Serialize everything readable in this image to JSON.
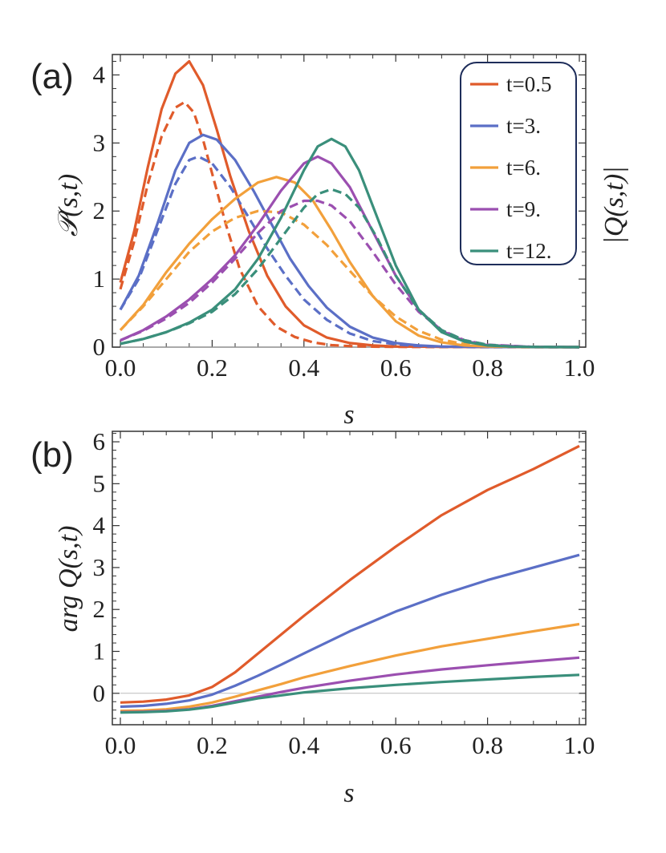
{
  "colors": {
    "t0_5": "#e05b2b",
    "t3": "#5b6fc6",
    "t6": "#f2a03b",
    "t9": "#9b4fb0",
    "t12": "#3a8f7b"
  },
  "chart_data": [
    {
      "panel": "(a)",
      "type": "line",
      "xlabel": "s",
      "ylabel_left": "𝒫(s,t)",
      "ylabel_right": "|Q(s,t)|",
      "xlim": [
        0.0,
        1.0
      ],
      "ylim": [
        0,
        4.3
      ],
      "xticks": [
        "0.0",
        "0.2",
        "0.4",
        "0.6",
        "0.8",
        "1.0"
      ],
      "yticks": [
        "0",
        "1",
        "2",
        "3",
        "4"
      ],
      "legend_position": "top-right",
      "legend": [
        "t=0.5",
        "t=3.",
        "t=6.",
        "t=9.",
        "t=12."
      ],
      "series": [
        {
          "name": "t=0.5",
          "style": "solid",
          "color_key": "t0_5",
          "x": [
            0,
            0.03,
            0.06,
            0.09,
            0.12,
            0.15,
            0.18,
            0.21,
            0.24,
            0.28,
            0.32,
            0.36,
            0.4,
            0.45,
            0.5,
            0.55,
            0.6,
            0.7,
            0.8,
            1.0
          ],
          "y": [
            0.95,
            1.7,
            2.65,
            3.5,
            4.02,
            4.2,
            3.85,
            3.2,
            2.5,
            1.7,
            1.05,
            0.6,
            0.32,
            0.14,
            0.06,
            0.025,
            0.01,
            0.003,
            0.001,
            0
          ]
        },
        {
          "name": "t=0.5 (dashed)",
          "style": "dashed",
          "color_key": "t0_5",
          "x": [
            0,
            0.03,
            0.06,
            0.09,
            0.12,
            0.14,
            0.16,
            0.18,
            0.2,
            0.23,
            0.26,
            0.3,
            0.34,
            0.38,
            0.42,
            0.46,
            0.5,
            0.55,
            0.6,
            0.7,
            0.8,
            1.0
          ],
          "y": [
            0.85,
            1.55,
            2.4,
            3.1,
            3.52,
            3.6,
            3.45,
            3.05,
            2.55,
            1.8,
            1.15,
            0.6,
            0.3,
            0.15,
            0.07,
            0.03,
            0.015,
            0.007,
            0.003,
            0.001,
            0,
            0
          ]
        },
        {
          "name": "t=3.",
          "style": "solid",
          "color_key": "t3",
          "x": [
            0,
            0.04,
            0.08,
            0.12,
            0.15,
            0.18,
            0.21,
            0.25,
            0.29,
            0.33,
            0.37,
            0.41,
            0.45,
            0.5,
            0.55,
            0.6,
            0.65,
            0.7,
            0.8,
            1.0
          ],
          "y": [
            0.55,
            1.05,
            1.8,
            2.6,
            3.0,
            3.12,
            3.05,
            2.75,
            2.3,
            1.8,
            1.3,
            0.9,
            0.58,
            0.3,
            0.14,
            0.06,
            0.025,
            0.01,
            0.002,
            0
          ]
        },
        {
          "name": "t=3. (dashed)",
          "style": "dashed",
          "color_key": "t3",
          "x": [
            0,
            0.04,
            0.08,
            0.12,
            0.15,
            0.17,
            0.2,
            0.24,
            0.28,
            0.32,
            0.36,
            0.4,
            0.45,
            0.5,
            0.55,
            0.6,
            0.65,
            0.7,
            0.8,
            1.0
          ],
          "y": [
            0.55,
            1.0,
            1.7,
            2.4,
            2.75,
            2.8,
            2.7,
            2.35,
            1.9,
            1.45,
            1.05,
            0.7,
            0.4,
            0.2,
            0.09,
            0.04,
            0.015,
            0.006,
            0.001,
            0
          ]
        },
        {
          "name": "t=6.",
          "style": "solid",
          "color_key": "t6",
          "x": [
            0,
            0.05,
            0.1,
            0.15,
            0.2,
            0.25,
            0.3,
            0.34,
            0.38,
            0.42,
            0.46,
            0.5,
            0.55,
            0.6,
            0.65,
            0.7,
            0.75,
            0.8,
            0.9,
            1.0
          ],
          "y": [
            0.25,
            0.62,
            1.1,
            1.52,
            1.88,
            2.18,
            2.42,
            2.5,
            2.42,
            2.15,
            1.72,
            1.25,
            0.75,
            0.38,
            0.17,
            0.07,
            0.025,
            0.01,
            0.001,
            0
          ]
        },
        {
          "name": "t=6. (dashed)",
          "style": "dashed",
          "color_key": "t6",
          "x": [
            0,
            0.05,
            0.1,
            0.15,
            0.2,
            0.25,
            0.3,
            0.35,
            0.4,
            0.45,
            0.5,
            0.55,
            0.6,
            0.65,
            0.7,
            0.75,
            0.8,
            0.9,
            1.0
          ],
          "y": [
            0.25,
            0.6,
            1.0,
            1.4,
            1.7,
            1.9,
            2.0,
            1.98,
            1.8,
            1.5,
            1.12,
            0.75,
            0.45,
            0.24,
            0.11,
            0.045,
            0.015,
            0.002,
            0
          ]
        },
        {
          "name": "t=9.",
          "style": "solid",
          "color_key": "t9",
          "x": [
            0,
            0.05,
            0.1,
            0.15,
            0.2,
            0.25,
            0.3,
            0.35,
            0.4,
            0.43,
            0.46,
            0.5,
            0.55,
            0.6,
            0.65,
            0.7,
            0.75,
            0.8,
            0.9,
            1.0
          ],
          "y": [
            0.1,
            0.25,
            0.45,
            0.7,
            1.0,
            1.35,
            1.8,
            2.3,
            2.7,
            2.8,
            2.7,
            2.35,
            1.7,
            1.05,
            0.55,
            0.24,
            0.09,
            0.03,
            0.003,
            0
          ]
        },
        {
          "name": "t=9. (dashed)",
          "style": "dashed",
          "color_key": "t9",
          "x": [
            0,
            0.05,
            0.1,
            0.15,
            0.2,
            0.25,
            0.3,
            0.35,
            0.4,
            0.43,
            0.46,
            0.5,
            0.55,
            0.6,
            0.65,
            0.7,
            0.75,
            0.8,
            0.9,
            1.0
          ],
          "y": [
            0.1,
            0.24,
            0.42,
            0.65,
            0.95,
            1.3,
            1.68,
            2.0,
            2.15,
            2.15,
            2.08,
            1.85,
            1.4,
            0.92,
            0.52,
            0.25,
            0.1,
            0.035,
            0.003,
            0
          ]
        },
        {
          "name": "t=12.",
          "style": "solid",
          "color_key": "t12",
          "x": [
            0,
            0.05,
            0.1,
            0.15,
            0.2,
            0.25,
            0.3,
            0.35,
            0.4,
            0.43,
            0.46,
            0.49,
            0.52,
            0.56,
            0.6,
            0.65,
            0.7,
            0.75,
            0.8,
            0.85,
            0.9,
            1.0
          ],
          "y": [
            0.05,
            0.12,
            0.22,
            0.36,
            0.55,
            0.85,
            1.3,
            1.9,
            2.6,
            2.95,
            3.06,
            2.95,
            2.6,
            1.9,
            1.2,
            0.55,
            0.22,
            0.08,
            0.025,
            0.008,
            0.002,
            0
          ]
        },
        {
          "name": "t=12. (dashed)",
          "style": "dashed",
          "color_key": "t12",
          "x": [
            0,
            0.05,
            0.1,
            0.15,
            0.2,
            0.25,
            0.3,
            0.35,
            0.4,
            0.43,
            0.46,
            0.49,
            0.52,
            0.56,
            0.6,
            0.65,
            0.7,
            0.75,
            0.8,
            0.85,
            0.9,
            1.0
          ],
          "y": [
            0.05,
            0.12,
            0.22,
            0.35,
            0.52,
            0.78,
            1.15,
            1.6,
            2.05,
            2.25,
            2.32,
            2.25,
            2.05,
            1.6,
            1.05,
            0.55,
            0.25,
            0.1,
            0.035,
            0.01,
            0.003,
            0
          ]
        }
      ]
    },
    {
      "panel": "(b)",
      "type": "line",
      "xlabel": "s",
      "ylabel": "arg Q(s,t)",
      "xlim": [
        0.0,
        1.0
      ],
      "ylim": [
        -0.75,
        6.25
      ],
      "xticks": [
        "0.0",
        "0.2",
        "0.4",
        "0.6",
        "0.8",
        "1.0"
      ],
      "yticks": [
        "0",
        "1",
        "2",
        "3",
        "4",
        "5",
        "6"
      ],
      "reference_line_y": 0,
      "series": [
        {
          "name": "t=0.5",
          "color_key": "t0_5",
          "x": [
            0,
            0.05,
            0.1,
            0.15,
            0.2,
            0.25,
            0.3,
            0.35,
            0.4,
            0.5,
            0.6,
            0.7,
            0.8,
            0.9,
            1.0
          ],
          "y": [
            -0.22,
            -0.2,
            -0.15,
            -0.05,
            0.15,
            0.5,
            0.95,
            1.4,
            1.85,
            2.7,
            3.5,
            4.25,
            4.85,
            5.35,
            5.9
          ]
        },
        {
          "name": "t=3.",
          "color_key": "t3",
          "x": [
            0,
            0.05,
            0.1,
            0.15,
            0.2,
            0.25,
            0.3,
            0.35,
            0.4,
            0.5,
            0.6,
            0.7,
            0.8,
            0.9,
            1.0
          ],
          "y": [
            -0.32,
            -0.3,
            -0.25,
            -0.17,
            -0.03,
            0.18,
            0.42,
            0.68,
            0.95,
            1.48,
            1.95,
            2.35,
            2.7,
            3.0,
            3.3
          ]
        },
        {
          "name": "t=6.",
          "color_key": "t6",
          "x": [
            0,
            0.05,
            0.1,
            0.15,
            0.2,
            0.25,
            0.3,
            0.35,
            0.4,
            0.5,
            0.6,
            0.7,
            0.8,
            0.9,
            1.0
          ],
          "y": [
            -0.42,
            -0.41,
            -0.38,
            -0.32,
            -0.22,
            -0.08,
            0.07,
            0.22,
            0.38,
            0.65,
            0.9,
            1.12,
            1.3,
            1.48,
            1.65
          ]
        },
        {
          "name": "t=9.",
          "color_key": "t9",
          "x": [
            0,
            0.05,
            0.1,
            0.15,
            0.2,
            0.25,
            0.3,
            0.35,
            0.4,
            0.5,
            0.6,
            0.7,
            0.8,
            0.9,
            1.0
          ],
          "y": [
            -0.45,
            -0.44,
            -0.42,
            -0.38,
            -0.3,
            -0.19,
            -0.08,
            0.03,
            0.13,
            0.3,
            0.45,
            0.57,
            0.67,
            0.76,
            0.85
          ]
        },
        {
          "name": "t=12.",
          "color_key": "t12",
          "x": [
            0,
            0.05,
            0.1,
            0.15,
            0.2,
            0.25,
            0.3,
            0.35,
            0.4,
            0.5,
            0.6,
            0.7,
            0.8,
            0.9,
            1.0
          ],
          "y": [
            -0.46,
            -0.45,
            -0.43,
            -0.39,
            -0.32,
            -0.22,
            -0.12,
            -0.05,
            0.02,
            0.12,
            0.2,
            0.27,
            0.33,
            0.39,
            0.44
          ]
        }
      ]
    }
  ]
}
